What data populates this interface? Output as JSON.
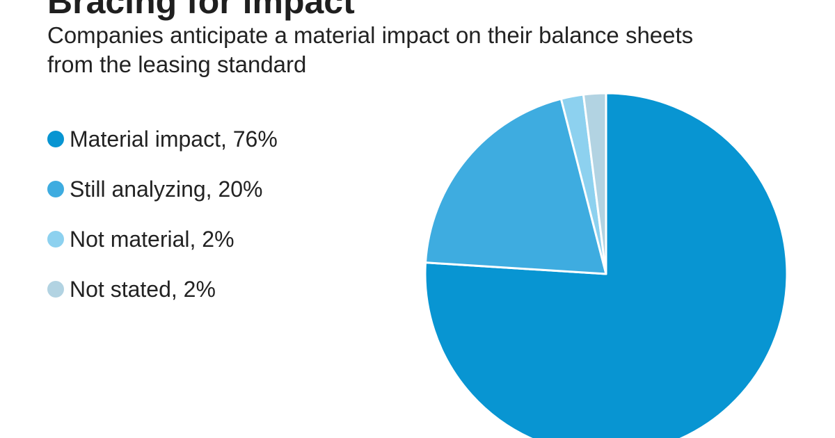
{
  "header": {
    "title": "Bracing for impact",
    "subtitle": "Companies anticipate a material impact on their balance sheets from the leasing standard"
  },
  "legend": {
    "items": [
      {
        "label": "Material impact, 76%",
        "color": "#0895d2"
      },
      {
        "label": "Still analyzing, 20%",
        "color": "#3eace0"
      },
      {
        "label": "Not material, 2%",
        "color": "#8dd1ef"
      },
      {
        "label": "Not stated, 2%",
        "color": "#b2d3e2"
      }
    ]
  },
  "chart_data": {
    "type": "pie",
    "title": "Bracing for impact",
    "subtitle": "Companies anticipate a material impact on their balance sheets from the leasing standard",
    "categories": [
      "Material impact",
      "Still analyzing",
      "Not material",
      "Not stated"
    ],
    "values": [
      76,
      20,
      2,
      2
    ],
    "colors": [
      "#0895d2",
      "#3eace0",
      "#8dd1ef",
      "#b2d3e2"
    ],
    "unit": "%",
    "legend": "left",
    "start": "top",
    "direction": "clockwise"
  }
}
